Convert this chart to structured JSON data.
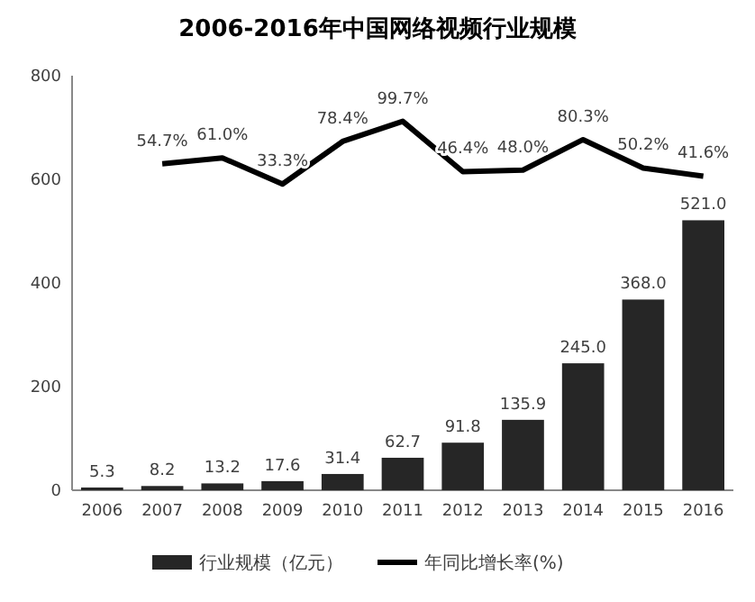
{
  "chart_data": {
    "type": "bar",
    "title": "2006-2016年中国网络视频行业规模",
    "categories": [
      "2006",
      "2007",
      "2008",
      "2009",
      "2010",
      "2011",
      "2012",
      "2013",
      "2014",
      "2015",
      "2016"
    ],
    "series": [
      {
        "name": "行业规模（亿元）",
        "color": "#262626",
        "values": [
          5.3,
          8.2,
          13.2,
          17.6,
          31.4,
          62.7,
          91.8,
          135.9,
          245.0,
          368.0,
          521.0
        ],
        "value_labels": [
          "5.3",
          "8.2",
          "13.2",
          "17.6",
          "31.4",
          "62.7",
          "91.8",
          "135.9",
          "245.0",
          "368.0",
          "521.0"
        ]
      },
      {
        "name": "年同比增长率(%)",
        "type": "line",
        "axis": "y2",
        "color": "#000000",
        "values": [
          null,
          54.7,
          61.0,
          33.3,
          78.4,
          99.7,
          46.4,
          48.0,
          80.3,
          50.2,
          41.6
        ],
        "value_labels": [
          null,
          "54.7%",
          "61.0%",
          "33.3%",
          "78.4%",
          "99.7%",
          "46.4%",
          "48.0%",
          "80.3%",
          "50.2%",
          "41.6%"
        ]
      }
    ],
    "ylim": [
      0,
      800
    ],
    "yticks": [
      0,
      200,
      400,
      600,
      800
    ],
    "y2lim": [
      -291,
      148
    ],
    "grid": false,
    "legend": "bottom",
    "marker": "none"
  }
}
